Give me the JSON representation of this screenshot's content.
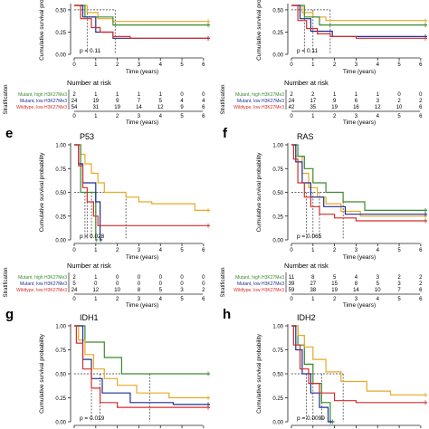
{
  "colors": {
    "green": "#3a8a2a",
    "blue": "#1f2f8f",
    "orange": "#e9a825",
    "red": "#d42d2b",
    "dash": "#333333",
    "axis": "#222222"
  },
  "common": {
    "ylabel": "Cumulative survival probability",
    "xlabel": "Time (years)",
    "risk_title": "Number at risk",
    "strat_label": "Stratification",
    "legend": [
      "Mutant, high H3K27Me3",
      "Mutant, low H3K27Me3",
      "Wildtype, low H3K27Me3"
    ],
    "yticks": [
      "0.50",
      "0.25",
      "0.00"
    ],
    "yticks_full": [
      "1.00",
      "0.75",
      "0.50",
      "0.25",
      "0.00"
    ],
    "xticks": [
      "0",
      "1",
      "2",
      "3",
      "4",
      "5",
      "6"
    ]
  },
  "chart_data": [
    {
      "panel": "",
      "type": "line",
      "title": "",
      "pvalue": "p = 0.11",
      "xlim": [
        0,
        6.3
      ],
      "ylim": [
        0,
        0.55
      ],
      "series": [
        {
          "color": "orange",
          "x": [
            0,
            0.6,
            0.6,
            1.1,
            1.1,
            1.8,
            1.8,
            2.5,
            2.5,
            6.3
          ],
          "y": [
            0.55,
            0.55,
            0.47,
            0.47,
            0.4,
            0.4,
            0.37,
            0.37,
            0.37,
            0.37
          ]
        },
        {
          "color": "green",
          "x": [
            0,
            0.5,
            0.5,
            1.8,
            1.8,
            6.3
          ],
          "y": [
            0.55,
            0.55,
            0.42,
            0.42,
            0.33,
            0.33
          ]
        },
        {
          "color": "blue",
          "x": [
            0,
            0.4,
            0.4,
            1,
            1,
            1.8,
            1.8,
            6.3
          ],
          "y": [
            0.55,
            0.55,
            0.42,
            0.42,
            0.25,
            0.25,
            0.18,
            0.18
          ]
        },
        {
          "color": "red",
          "x": [
            0,
            0.3,
            0.3,
            0.8,
            0.8,
            1.2,
            1.2,
            1.8,
            1.8,
            2.6,
            2.6,
            6.3
          ],
          "y": [
            0.55,
            0.55,
            0.4,
            0.4,
            0.3,
            0.3,
            0.25,
            0.25,
            0.2,
            0.2,
            0.18,
            0.18
          ]
        }
      ],
      "medians": [
        0.6,
        1.9
      ],
      "risk": [
        [
          "2",
          "1",
          "1",
          "1",
          "1",
          "0",
          "0"
        ],
        [
          "24",
          "19",
          "9",
          "7",
          "5",
          "4",
          "4"
        ],
        [
          "54",
          "31",
          "19",
          "14",
          "12",
          "9",
          "6"
        ]
      ]
    },
    {
      "panel": "",
      "type": "line",
      "title": "",
      "pvalue": "p = 0.11",
      "xlim": [
        0,
        6.3
      ],
      "ylim": [
        0,
        0.55
      ],
      "series": [
        {
          "color": "orange",
          "x": [
            0,
            0.5,
            0.5,
            1,
            1,
            1.6,
            1.6,
            2.5,
            2.5,
            6.3
          ],
          "y": [
            0.55,
            0.55,
            0.47,
            0.47,
            0.42,
            0.42,
            0.38,
            0.38,
            0.38,
            0.38
          ]
        },
        {
          "color": "green",
          "x": [
            0,
            0.6,
            0.6,
            1.3,
            1.3,
            6.3
          ],
          "y": [
            0.55,
            0.55,
            0.42,
            0.42,
            0.33,
            0.33
          ]
        },
        {
          "color": "blue",
          "x": [
            0,
            0.4,
            0.4,
            0.9,
            0.9,
            1.9,
            1.9,
            6.3
          ],
          "y": [
            0.55,
            0.55,
            0.4,
            0.4,
            0.26,
            0.26,
            0.2,
            0.2
          ]
        },
        {
          "color": "red",
          "x": [
            0,
            0.3,
            0.3,
            0.7,
            0.7,
            1.2,
            1.2,
            1.8,
            1.8,
            3,
            3,
            6.3
          ],
          "y": [
            0.55,
            0.55,
            0.38,
            0.38,
            0.29,
            0.29,
            0.23,
            0.23,
            0.2,
            0.2,
            0.18,
            0.18
          ]
        }
      ],
      "medians": [
        0.6,
        1.0,
        1.8
      ],
      "risk": [
        [
          "2",
          "2",
          "1",
          "1",
          "1",
          "0",
          "0"
        ],
        [
          "24",
          "17",
          "9",
          "6",
          "3",
          "2",
          "2"
        ],
        [
          "42",
          "35",
          "19",
          "16",
          "12",
          "10",
          "6"
        ]
      ]
    },
    {
      "panel": "e",
      "type": "line",
      "title": "P53",
      "pvalue": "p = 0.028",
      "xlim": [
        0,
        6.3
      ],
      "ylim": [
        0,
        1
      ],
      "series": [
        {
          "color": "orange",
          "x": [
            0,
            0.3,
            0.3,
            0.5,
            0.5,
            0.8,
            0.8,
            1.1,
            1.1,
            1.4,
            1.4,
            2.4,
            2.4,
            3,
            3,
            3.6,
            3.6,
            5.6,
            5.6,
            6.3
          ],
          "y": [
            1,
            1,
            0.9,
            0.9,
            0.8,
            0.8,
            0.7,
            0.7,
            0.6,
            0.6,
            0.5,
            0.5,
            0.45,
            0.45,
            0.4,
            0.4,
            0.38,
            0.38,
            0.31,
            0.31
          ]
        },
        {
          "color": "green",
          "x": [
            0,
            0.3,
            0.3,
            0.6,
            0.6,
            1.0,
            1.0,
            1.1
          ],
          "y": [
            1,
            1,
            0.5,
            0.5,
            0.5,
            0.5,
            0,
            0
          ]
        },
        {
          "color": "blue",
          "x": [
            0,
            0.2,
            0.2,
            0.4,
            0.4,
            1.0,
            1.0,
            1.2,
            1.2,
            1.3
          ],
          "y": [
            1,
            1,
            0.8,
            0.8,
            0.6,
            0.6,
            0.4,
            0.4,
            0,
            0
          ]
        },
        {
          "color": "red",
          "x": [
            0,
            0.2,
            0.2,
            0.4,
            0.4,
            0.6,
            0.6,
            0.9,
            0.9,
            1.1,
            1.1,
            6.3
          ],
          "y": [
            1,
            1,
            0.78,
            0.78,
            0.55,
            0.55,
            0.4,
            0.4,
            0.25,
            0.25,
            0.15,
            0.15
          ]
        }
      ],
      "medians": [
        0.5,
        0.6,
        0.8,
        1.0,
        2.4
      ],
      "risk": [
        [
          "2",
          "1",
          "0",
          "0",
          "0",
          "0",
          "0"
        ],
        [
          "5",
          "0",
          "0",
          "0",
          "0",
          "0",
          "0"
        ],
        [
          "24",
          "12",
          "10",
          "8",
          "5",
          "3",
          "2"
        ]
      ]
    },
    {
      "panel": "f",
      "type": "line",
      "title": "RAS",
      "pvalue": "p = 0.065",
      "xlim": [
        0,
        6.3
      ],
      "ylim": [
        0,
        1
      ],
      "series": [
        {
          "color": "orange",
          "x": [
            0,
            0.2,
            0.2,
            0.5,
            0.5,
            0.8,
            0.8,
            1.2,
            1.2,
            1.6,
            1.6,
            2.3,
            2.3,
            3.2,
            3.2,
            6.3
          ],
          "y": [
            1,
            1,
            0.88,
            0.88,
            0.7,
            0.7,
            0.55,
            0.55,
            0.45,
            0.45,
            0.38,
            0.38,
            0.3,
            0.3,
            0.25,
            0.25
          ]
        },
        {
          "color": "green",
          "x": [
            0,
            0.3,
            0.3,
            0.6,
            0.6,
            1.0,
            1.0,
            1.6,
            1.6,
            2.4,
            2.4,
            3.4,
            3.4,
            6.3
          ],
          "y": [
            1,
            1,
            0.88,
            0.88,
            0.75,
            0.75,
            0.6,
            0.6,
            0.5,
            0.5,
            0.4,
            0.4,
            0.31,
            0.31
          ]
        },
        {
          "color": "blue",
          "x": [
            0,
            0.2,
            0.2,
            0.5,
            0.5,
            0.9,
            0.9,
            1.5,
            1.5,
            2.5,
            2.5,
            6.3
          ],
          "y": [
            1,
            1,
            0.82,
            0.82,
            0.6,
            0.6,
            0.45,
            0.45,
            0.35,
            0.35,
            0.27,
            0.27
          ]
        },
        {
          "color": "red",
          "x": [
            0,
            0.1,
            0.1,
            0.3,
            0.3,
            0.6,
            0.6,
            0.9,
            0.9,
            1.3,
            1.3,
            2,
            2,
            3,
            3,
            6.3
          ],
          "y": [
            1,
            1,
            0.85,
            0.85,
            0.6,
            0.6,
            0.45,
            0.45,
            0.35,
            0.35,
            0.27,
            0.27,
            0.23,
            0.23,
            0.2,
            0.2
          ]
        }
      ],
      "medians": [
        0.7,
        1.0,
        1.3,
        2.4
      ],
      "risk": [
        [
          "11",
          "8",
          "5",
          "4",
          "3",
          "2",
          "2"
        ],
        [
          "39",
          "27",
          "15",
          "8",
          "5",
          "3",
          "2"
        ],
        [
          "59",
          "38",
          "19",
          "14",
          "10",
          "7",
          "6"
        ]
      ]
    },
    {
      "panel": "g",
      "type": "line",
      "title": "IDH1",
      "pvalue": "p = 0.019",
      "xlim": [
        0,
        6.3
      ],
      "ylim": [
        0,
        1
      ],
      "series": [
        {
          "color": "green",
          "x": [
            0,
            0.5,
            0.5,
            1.4,
            1.4,
            2.2,
            2.2,
            3.5,
            3.5,
            6.3
          ],
          "y": [
            1,
            1,
            0.83,
            0.83,
            0.67,
            0.67,
            0.5,
            0.5,
            0.5,
            0.5
          ]
        },
        {
          "color": "orange",
          "x": [
            0,
            0.2,
            0.2,
            0.5,
            0.5,
            0.9,
            0.9,
            1.4,
            1.4,
            2,
            2,
            2.9,
            2.9,
            4.4,
            4.4,
            6.3
          ],
          "y": [
            1,
            1,
            0.85,
            0.85,
            0.7,
            0.7,
            0.55,
            0.55,
            0.45,
            0.45,
            0.38,
            0.38,
            0.3,
            0.3,
            0.25,
            0.25
          ]
        },
        {
          "color": "blue",
          "x": [
            0,
            0.4,
            0.4,
            0.8,
            0.8,
            1.3,
            1.3,
            2.6,
            2.6,
            4.6,
            4.6,
            6.3
          ],
          "y": [
            1,
            1,
            0.65,
            0.65,
            0.45,
            0.45,
            0.3,
            0.3,
            0.2,
            0.2,
            0.18,
            0.18
          ]
        },
        {
          "color": "red",
          "x": [
            0,
            0.1,
            0.1,
            0.4,
            0.4,
            0.8,
            0.8,
            1.2,
            1.2,
            2,
            2,
            6.3
          ],
          "y": [
            1,
            1,
            0.82,
            0.82,
            0.55,
            0.55,
            0.35,
            0.35,
            0.2,
            0.2,
            0.15,
            0.15
          ]
        }
      ],
      "medians": [
        0.8,
        1.2,
        3.5
      ],
      "risk": []
    },
    {
      "panel": "h",
      "type": "line",
      "title": "IDH2",
      "pvalue": "p = 0.0099",
      "xlim": [
        0,
        6.3
      ],
      "ylim": [
        0,
        1
      ],
      "series": [
        {
          "color": "green",
          "x": [
            0,
            0.3,
            0.3,
            0.6,
            0.6,
            1.0,
            1.0,
            1.4,
            1.4,
            1.8,
            1.8,
            2.0
          ],
          "y": [
            1,
            1,
            0.8,
            0.8,
            0.6,
            0.6,
            0.4,
            0.4,
            0.2,
            0.2,
            0,
            0
          ]
        },
        {
          "color": "orange",
          "x": [
            0,
            0.3,
            0.3,
            0.6,
            0.6,
            1.0,
            1.0,
            1.6,
            1.6,
            2.3,
            2.3,
            3.5,
            3.5,
            4.6,
            4.6,
            6.3
          ],
          "y": [
            1,
            1,
            0.9,
            0.9,
            0.78,
            0.78,
            0.65,
            0.65,
            0.52,
            0.52,
            0.42,
            0.42,
            0.32,
            0.32,
            0.28,
            0.28
          ]
        },
        {
          "color": "blue",
          "x": [
            0,
            0.2,
            0.2,
            0.5,
            0.5,
            0.9,
            0.9,
            1.3,
            1.3,
            1.7,
            1.7,
            1.9
          ],
          "y": [
            1,
            1,
            0.75,
            0.75,
            0.5,
            0.5,
            0.3,
            0.3,
            0.15,
            0.15,
            0,
            0
          ]
        },
        {
          "color": "red",
          "x": [
            0,
            0.1,
            0.1,
            0.4,
            0.4,
            0.8,
            0.8,
            1.3,
            1.3,
            2,
            2,
            3,
            3,
            6.3
          ],
          "y": [
            1,
            1,
            0.8,
            0.8,
            0.55,
            0.55,
            0.4,
            0.4,
            0.3,
            0.3,
            0.22,
            0.22,
            0.2,
            0.2
          ]
        }
      ],
      "medians": [
        0.7,
        1.0,
        1.4,
        2.4
      ],
      "risk": []
    }
  ]
}
